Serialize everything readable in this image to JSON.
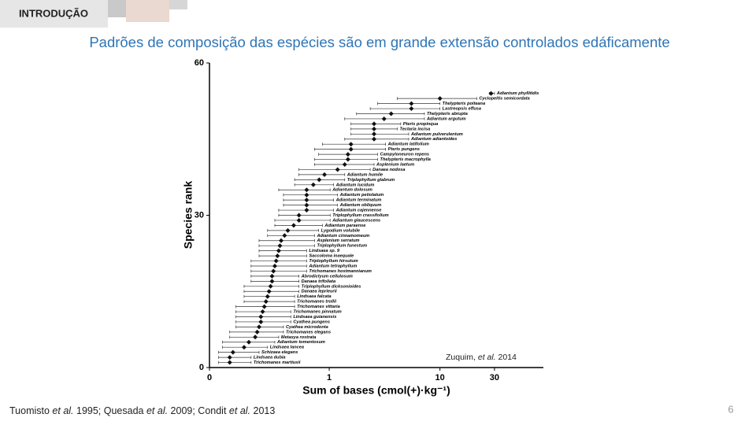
{
  "header": {
    "section": "INTRODUÇÃO",
    "title": "Padrões de composição das espécies são em grande extensão controlados edáficamente"
  },
  "footer": {
    "citation": [
      "Tuomisto ",
      "et al.",
      " 1995; Quesada ",
      "et al.",
      " 2009; Condit ",
      "et al.",
      " 2013"
    ],
    "page": "6"
  },
  "chart_data": {
    "type": "scatter",
    "x_label": "Sum of bases (cmol(+)·kg⁻¹)",
    "y_label": "Species rank",
    "source": [
      "Zuquim, ",
      "et al.",
      " 2014"
    ],
    "log_scale": true,
    "xlim": [
      0,
      80
    ],
    "xticks": [
      0,
      1,
      10,
      30
    ],
    "ylim": [
      0,
      60
    ],
    "yticks": [
      0,
      30,
      60
    ],
    "color": "#111111",
    "series": [
      {
        "labels": [
          "Adiantum phyllitidis",
          "Cyclopeltis semicordata",
          "Thelypteris poiteana",
          "Lastreopsis effusa",
          "Thelypteris abrupta",
          "Adiantum argutum",
          "Pteris propinqua",
          "Tectaria incisa",
          "Adiantum pulverulentum",
          "Adiantum adiantoides",
          "Adiantum latifolium",
          "Pteris pungens",
          "Campyloneuron repens",
          "Thelypteris macrophylla",
          "Asplenium laetum",
          "Danaea nodosa",
          "Adiantum humile",
          "Triplophyllum glabrum",
          "Adiantum lucidum",
          "Adiantum dolosum",
          "Adiantum petiolatum",
          "Adiantum terminatum",
          "Adiantum obliquum",
          "Adiantum cajennense",
          "Triplophyllum crassifolium",
          "Adiantum glaucescens",
          "Adiantum paraense",
          "Lygodium volubile",
          "Adiantum cinnamomeum",
          "Asplenium serratum",
          "Triplophyllum funestum",
          "Lindsaea sp. 9",
          "Saccoloma inaequale",
          "Triplophyllum hirsutum",
          "Adiantum tetraphyllum",
          "Trichomanes hostmannianum",
          "Abrodictyum cellulosum",
          "Danaea trifoliata",
          "Triplophyllum dicksonioides",
          "Danaea leprieurii",
          "Lindsaea falcata",
          "Trichomanes trollii",
          "Trichomanes vittaria",
          "Trichomanes pinnatum",
          "Lindsaea guianensis",
          "Cyathea pungens",
          "Cyathea microdonta",
          "Trichomanes elegans",
          "Metaxya rostrata",
          "Adiantum tomentosum",
          "Lindsaea lancea",
          "Schizaea elegans",
          "Lindsaea dubia",
          "Trichomanes martiusii"
        ],
        "x": [
          28,
          10,
          5.6,
          5.6,
          3.7,
          3.2,
          2.6,
          2.6,
          2.6,
          2.6,
          1.6,
          1.6,
          1.5,
          1.5,
          1.4,
          1.2,
          0.9,
          0.8,
          0.7,
          0.6,
          0.6,
          0.6,
          0.6,
          0.6,
          0.5,
          0.5,
          0.44,
          0.38,
          0.35,
          0.32,
          0.31,
          0.3,
          0.29,
          0.28,
          0.27,
          0.26,
          0.25,
          0.25,
          0.24,
          0.23,
          0.22,
          0.21,
          0.2,
          0.19,
          0.18,
          0.18,
          0.17,
          0.16,
          0.15,
          0.12,
          0.1,
          0.06,
          0.05,
          0.05
        ],
        "y": [
          54,
          53,
          52,
          51,
          50,
          49,
          48,
          47,
          46,
          45,
          44,
          43,
          42,
          41,
          40,
          39,
          38,
          37,
          36,
          35,
          34,
          33,
          32,
          31,
          30,
          29,
          28,
          27,
          26,
          25,
          24,
          23,
          22,
          21,
          20,
          19,
          18,
          17,
          16,
          15,
          14,
          13,
          12,
          11,
          10,
          9,
          8,
          7,
          6,
          5,
          4,
          3,
          2,
          1
        ],
        "lower": [
          27,
          4.2,
          2.8,
          2.4,
          1.8,
          1.4,
          1.6,
          1.6,
          1.6,
          1.4,
          0.86,
          0.72,
          0.79,
          0.72,
          0.72,
          0.5,
          0.5,
          0.45,
          0.45,
          0.3,
          0.34,
          0.34,
          0.34,
          0.3,
          0.3,
          0.27,
          0.27,
          0.22,
          0.22,
          0.17,
          0.17,
          0.17,
          0.17,
          0.13,
          0.13,
          0.13,
          0.13,
          0.13,
          0.1,
          0.1,
          0.1,
          0.1,
          0.07,
          0.07,
          0.07,
          0.07,
          0.07,
          0.05,
          0.05,
          0.03,
          0.03,
          0.02,
          0.02,
          0.02
        ],
        "upper": [
          30,
          21,
          10,
          10,
          7.3,
          7.3,
          4.5,
          4.2,
          5.3,
          5.3,
          3.3,
          3.3,
          2.8,
          2.8,
          2.6,
          2.4,
          1.4,
          1.4,
          1.1,
          1.02,
          1.2,
          1.1,
          1.2,
          1.1,
          1.02,
          1.02,
          0.86,
          0.79,
          0.72,
          0.72,
          0.72,
          0.6,
          0.6,
          0.6,
          0.6,
          0.6,
          0.5,
          0.5,
          0.5,
          0.5,
          0.45,
          0.45,
          0.45,
          0.41,
          0.41,
          0.41,
          0.34,
          0.34,
          0.3,
          0.27,
          0.22,
          0.17,
          0.13,
          0.13
        ]
      }
    ]
  }
}
